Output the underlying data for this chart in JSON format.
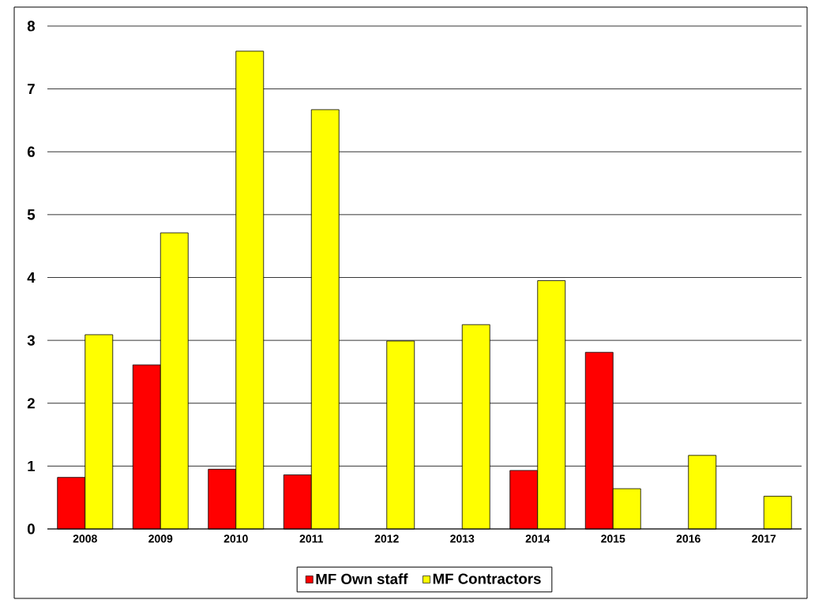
{
  "chart_data": {
    "type": "bar",
    "categories": [
      "2008",
      "2009",
      "2010",
      "2011",
      "2012",
      "2013",
      "2014",
      "2015",
      "2016",
      "2017"
    ],
    "series": [
      {
        "name": "MF Own staff",
        "color": "#ff0000",
        "values": [
          0.82,
          2.61,
          0.95,
          0.86,
          null,
          null,
          0.93,
          2.81,
          null,
          null
        ]
      },
      {
        "name": "MF Contractors",
        "color": "#ffff00",
        "values": [
          3.09,
          4.71,
          7.6,
          6.67,
          2.99,
          3.25,
          3.95,
          0.64,
          1.17,
          0.52
        ]
      }
    ],
    "ylim": [
      0,
      8
    ],
    "yticks": [
      0,
      1,
      2,
      3,
      4,
      5,
      6,
      7,
      8
    ],
    "grid": "y",
    "legend": "bottom"
  }
}
